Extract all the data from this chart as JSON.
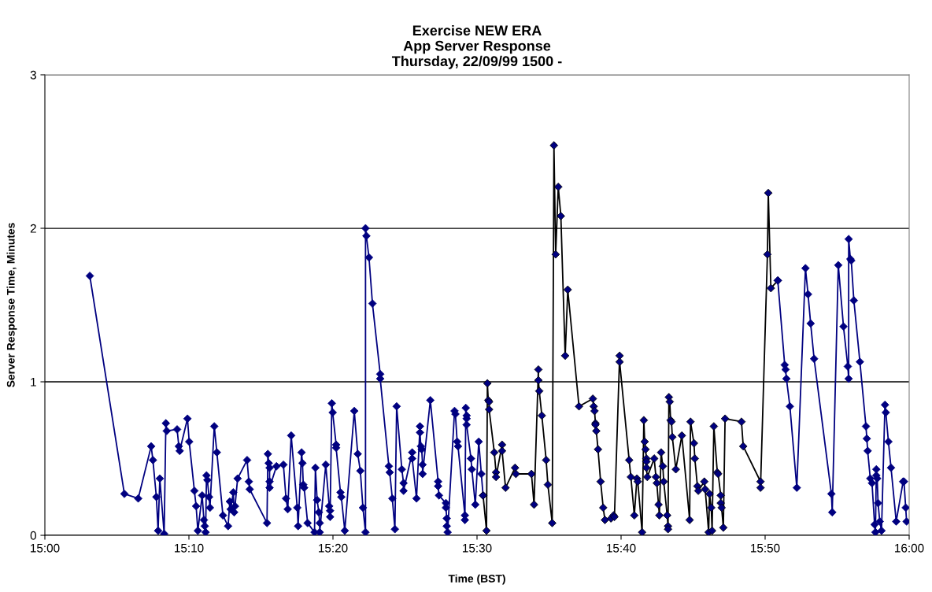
{
  "chart_data": {
    "type": "line",
    "title": "Exercise NEW ERA\nApp Server Response\nThursday, 22/09/99 1500 -",
    "xlabel": "Time (BST)",
    "ylabel": "Server Response Time, Minutes",
    "xlim": [
      15,
      16
    ],
    "xticks": [
      {
        "value": 15,
        "label": "15:00"
      },
      {
        "value": 15.16667,
        "label": "15:10"
      },
      {
        "value": 15.33333,
        "label": "15:20"
      },
      {
        "value": 15.5,
        "label": "15:30"
      },
      {
        "value": 15.66667,
        "label": "15:40"
      },
      {
        "value": 15.83333,
        "label": "15:50"
      },
      {
        "value": 16,
        "label": "16:00"
      }
    ],
    "ylim": [
      0,
      3
    ],
    "yticks": [
      0,
      1,
      2,
      3
    ],
    "grid": "y",
    "marker": "diamond",
    "line_style": "solid",
    "legend": false,
    "series": [
      {
        "color": "#000080",
        "x": [
          15.052,
          15.092,
          15.108,
          15.123,
          15.125,
          15.129,
          15.131,
          15.133,
          15.138,
          15.14,
          15.141,
          15.153,
          15.155,
          15.156,
          15.165,
          15.167,
          15.173,
          15.175,
          15.177,
          15.182,
          15.184,
          15.185,
          15.186,
          15.187,
          15.188,
          15.19,
          15.191,
          15.196,
          15.199,
          15.206,
          15.212,
          15.214,
          15.215,
          15.218,
          15.219,
          15.22,
          15.223,
          15.234,
          15.236,
          15.237,
          15.257,
          15.258,
          15.259,
          15.26,
          15.26,
          15.26,
          15.268,
          15.276,
          15.279,
          15.281,
          15.285,
          15.292,
          15.293,
          15.297,
          15.298,
          15.299,
          15.3,
          15.304,
          15.312,
          15.313,
          15.315,
          15.317,
          15.318,
          15.318,
          15.325,
          15.329,
          15.33,
          15.33,
          15.332,
          15.333,
          15.337,
          15.337,
          15.342,
          15.343,
          15.347,
          15.358,
          15.362,
          15.365,
          15.368,
          15.371,
          15.371,
          15.372,
          15.375,
          15.379,
          15.388,
          15.388,
          15.398,
          15.399,
          15.402,
          15.405,
          15.407,
          15.413,
          15.415,
          15.415,
          15.425,
          15.425,
          15.43,
          15.434,
          15.434,
          15.435,
          15.436,
          15.437,
          15.437,
          15.446,
          15.455,
          15.455,
          15.456,
          15.464,
          15.464,
          15.465,
          15.465,
          15.466,
          15.474,
          15.475,
          15.477,
          15.478,
          15.486,
          15.486,
          15.487,
          15.488,
          15.488,
          15.488,
          15.493,
          15.494,
          15.498,
          15.502,
          15.505,
          15.507
        ],
        "values": [
          1.69,
          0.27,
          0.24,
          0.58,
          0.49,
          0.25,
          0.03,
          0.37,
          0.01,
          0.73,
          0.68,
          0.69,
          0.58,
          0.55,
          0.76,
          0.61,
          0.29,
          0.19,
          0.03,
          0.26,
          0.1,
          0.06,
          0.02,
          0.39,
          0.36,
          0.25,
          0.18,
          0.71,
          0.54,
          0.13,
          0.06,
          0.22,
          0.17,
          0.28,
          0.15,
          0.19,
          0.37,
          0.49,
          0.35,
          0.3,
          0.08,
          0.53,
          0.47,
          0.44,
          0.35,
          0.31,
          0.45,
          0.46,
          0.24,
          0.17,
          0.65,
          0.18,
          0.06,
          0.54,
          0.47,
          0.33,
          0.31,
          0.08,
          0.02,
          0.44,
          0.23,
          0.15,
          0.08,
          0.02,
          0.46,
          0.19,
          0.16,
          0.12,
          0.86,
          0.8,
          0.59,
          0.57,
          0.28,
          0.25,
          0.03,
          0.81,
          0.53,
          0.42,
          0.18,
          0.02,
          2.0,
          1.95,
          1.81,
          1.51,
          1.05,
          1.02,
          0.45,
          0.41,
          0.24,
          0.04,
          0.84,
          0.43,
          0.34,
          0.29,
          0.54,
          0.5,
          0.24,
          0.71,
          0.67,
          0.58,
          0.56,
          0.46,
          0.4,
          0.88,
          0.35,
          0.32,
          0.26,
          0.21,
          0.18,
          0.11,
          0.06,
          0.02,
          0.81,
          0.79,
          0.61,
          0.58,
          0.13,
          0.1,
          0.83,
          0.78,
          0.76,
          0.72,
          0.5,
          0.43,
          0.2,
          0.61,
          0.4,
          0.26
        ]
      },
      {
        "color": "#000000",
        "x": [
          15.507,
          15.511,
          15.512,
          15.513,
          15.514,
          15.514,
          15.52,
          15.522,
          15.522,
          15.529,
          15.529,
          15.533,
          15.544,
          15.545,
          15.563,
          15.566,
          15.571,
          15.571,
          15.572,
          15.575,
          15.58,
          15.582,
          15.587,
          15.589,
          15.591,
          15.594,
          15.597,
          15.602,
          15.605,
          15.618,
          15.634,
          15.635,
          15.636,
          15.637,
          15.637,
          15.638,
          15.64,
          15.643,
          15.646,
          15.648,
          15.655,
          15.658,
          15.659,
          15.665,
          15.665,
          15.676,
          15.678,
          15.682,
          15.685,
          15.686,
          15.691,
          15.693,
          15.694,
          15.695,
          15.696,
          15.696,
          15.696,
          15.697,
          15.705,
          15.707,
          15.708,
          15.71,
          15.711,
          15.713,
          15.715,
          15.716,
          15.72,
          15.721,
          15.721,
          15.722,
          15.723,
          15.724,
          15.725,
          15.726,
          15.73,
          15.737,
          15.746,
          15.747,
          15.751,
          15.752,
          15.755,
          15.756,
          15.763,
          15.764,
          15.768,
          15.769,
          15.771,
          15.772,
          15.774,
          15.778,
          15.779,
          15.782,
          15.782,
          15.783,
          15.785,
          15.787,
          15.806,
          15.808,
          15.828,
          15.828,
          15.836,
          15.837,
          15.84,
          15.848
        ],
        "values": [
          0.26,
          0.03,
          0.99,
          0.88,
          0.87,
          0.82,
          0.54,
          0.41,
          0.38,
          0.59,
          0.55,
          0.31,
          0.44,
          0.4,
          0.4,
          0.2,
          1.08,
          1.01,
          0.94,
          0.78,
          0.49,
          0.33,
          0.08,
          2.54,
          1.83,
          2.27,
          2.08,
          1.17,
          1.6,
          0.84,
          0.89,
          0.84,
          0.81,
          0.73,
          0.72,
          0.68,
          0.56,
          0.35,
          0.18,
          0.1,
          0.11,
          0.13,
          0.12,
          1.17,
          1.13,
          0.49,
          0.38,
          0.13,
          0.37,
          0.35,
          0.02,
          0.75,
          0.61,
          0.56,
          0.5,
          0.48,
          0.44,
          0.38,
          0.5,
          0.38,
          0.34,
          0.2,
          0.13,
          0.54,
          0.45,
          0.35,
          0.13,
          0.06,
          0.04,
          0.9,
          0.87,
          0.75,
          0.74,
          0.64,
          0.43,
          0.65,
          0.1,
          0.74,
          0.6,
          0.5,
          0.32,
          0.29,
          0.35,
          0.3,
          0.02,
          0.27,
          0.18,
          0.03,
          0.71,
          0.41,
          0.4,
          0.26,
          0.21,
          0.18,
          0.05,
          0.76,
          0.74,
          0.58,
          0.35,
          0.31,
          1.83,
          2.23,
          1.61,
          1.66
        ]
      },
      {
        "color": "#000080",
        "x": [
          15.848,
          15.856,
          15.857,
          15.858,
          15.862,
          15.87,
          15.88,
          15.883,
          15.886,
          15.89,
          15.91,
          15.911,
          15.918,
          15.924,
          15.929,
          15.93,
          15.93,
          15.932,
          15.933,
          15.936,
          15.943,
          15.95,
          15.951,
          15.952,
          15.955,
          15.957,
          15.96,
          15.961,
          15.962,
          15.962,
          15.963,
          15.964,
          15.966,
          15.968,
          15.972,
          15.973,
          15.976,
          15.979,
          15.985,
          15.993,
          15.994,
          15.996,
          15.997
        ],
        "values": [
          1.66,
          1.11,
          1.08,
          1.02,
          0.84,
          0.31,
          1.74,
          1.57,
          1.38,
          1.15,
          0.27,
          0.15,
          1.76,
          1.36,
          1.1,
          1.02,
          1.93,
          1.8,
          1.79,
          1.53,
          1.13,
          0.71,
          0.63,
          0.55,
          0.37,
          0.34,
          0.07,
          0.02,
          0.43,
          0.39,
          0.37,
          0.21,
          0.09,
          0.03,
          0.85,
          0.8,
          0.61,
          0.44,
          0.09,
          0.35,
          0.35,
          0.18,
          0.09
        ]
      }
    ]
  }
}
